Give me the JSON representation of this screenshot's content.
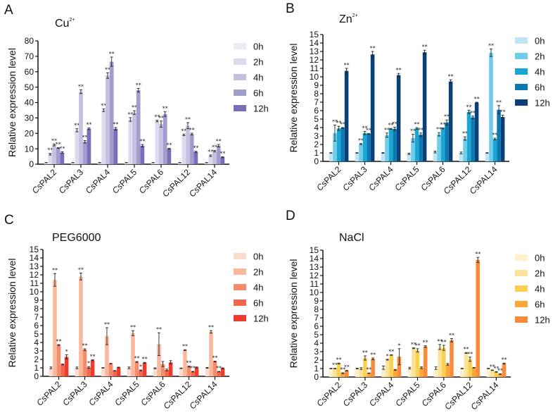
{
  "figure": {
    "genes": [
      "CsPAL2",
      "CsPAL3",
      "CsPAL4",
      "CsPAL5",
      "CsPAL6",
      "CsPAL12",
      "CsPAL14"
    ],
    "timepoints": [
      "0h",
      "2h",
      "4h",
      "6h",
      "12h"
    ]
  },
  "chart_data": [
    {
      "panel": "A",
      "type": "bar",
      "title": "Cu",
      "title_sup": "2+",
      "xlabel": "",
      "ylabel": "Relative expression level",
      "ylim": [
        0,
        80
      ],
      "yticks": [
        0,
        10,
        20,
        30,
        40,
        50,
        60,
        70,
        80
      ],
      "categories": [
        "CsPAL2",
        "CsPAL3",
        "CsPAL4",
        "CsPAL5",
        "CsPAL6",
        "CsPAL12",
        "CsPAL14"
      ],
      "legend": {
        "placement": "right",
        "entries": [
          "0h",
          "2h",
          "4h",
          "6h",
          "12h"
        ]
      },
      "colors": [
        "#eeeaf5",
        "#dcdaee",
        "#c3c1df",
        "#a19dcf",
        "#7b6db8"
      ],
      "series": [
        {
          "name": "0h",
          "values": [
            1,
            1,
            1,
            1,
            1,
            1,
            1
          ],
          "errors": [
            0.1,
            0.1,
            0.1,
            0.1,
            0.1,
            0.1,
            0.1
          ],
          "sig": [
            "",
            "",
            "",
            "",
            "",
            "",
            ""
          ]
        },
        {
          "name": "2h",
          "values": [
            6.5,
            22,
            35,
            29,
            28,
            19,
            5.5
          ],
          "errors": [
            0.5,
            1,
            0.8,
            1.2,
            0.5,
            0.5,
            0.5
          ],
          "sig": [
            "**",
            "**",
            "**",
            "**",
            "**",
            "**",
            "**"
          ]
        },
        {
          "name": "4h",
          "values": [
            12.5,
            47,
            57.5,
            33.5,
            26,
            25,
            8.5
          ],
          "errors": [
            0.6,
            1.2,
            1.8,
            1.2,
            2,
            2,
            0.5
          ],
          "sig": [
            "**",
            "**",
            "**",
            "**",
            "**",
            "**",
            "**"
          ]
        },
        {
          "name": "6h",
          "values": [
            10.5,
            14.5,
            66.5,
            48,
            32.5,
            19.5,
            12
          ],
          "errors": [
            0.3,
            0.8,
            3,
            1.2,
            1.5,
            0.6,
            0.8
          ],
          "sig": [
            "**",
            "**",
            "**",
            "**",
            "**",
            "**",
            "**"
          ]
        },
        {
          "name": "12h",
          "values": [
            7.5,
            23,
            23,
            12,
            10,
            8,
            4.5
          ],
          "errors": [
            0.5,
            0.5,
            0.8,
            0.8,
            0.3,
            0.4,
            0.3
          ],
          "sig": [
            "**",
            "**",
            "**",
            "**",
            "**",
            "**",
            "**"
          ]
        }
      ]
    },
    {
      "panel": "B",
      "type": "bar",
      "title": "Zn",
      "title_sup": "2+",
      "xlabel": "",
      "ylabel": "Relative expression level",
      "ylim": [
        0,
        15
      ],
      "yticks": [
        0,
        1,
        2,
        3,
        4,
        5,
        6,
        7,
        8,
        9,
        10,
        11,
        12,
        13,
        14,
        15
      ],
      "categories": [
        "CsPAL2",
        "CsPAL3",
        "CsPAL4",
        "CsPAL5",
        "CsPAL6",
        "CsPAL12",
        "CsPAL14"
      ],
      "legend": {
        "placement": "right",
        "entries": [
          "0h",
          "2h",
          "4h",
          "6h",
          "12h"
        ]
      },
      "colors": [
        "#bfe5f5",
        "#6fcdec",
        "#1aa6d3",
        "#0b79b1",
        "#0a3f78"
      ],
      "series": [
        {
          "name": "0h",
          "values": [
            1,
            1,
            1,
            0.9,
            1.1,
            1,
            1
          ],
          "errors": [
            0.03,
            0.03,
            0.05,
            0.08,
            0.1,
            0.1,
            0.03
          ],
          "sig": [
            "",
            "",
            "",
            "",
            "",
            "",
            ""
          ]
        },
        {
          "name": "2h",
          "values": [
            3.35,
            2.05,
            3.1,
            2.75,
            3.2,
            2.7,
            12.85
          ],
          "errors": [
            0.95,
            0.05,
            0.25,
            0.45,
            0.2,
            0.2,
            0.45
          ],
          "sig": [
            "**",
            "**",
            "**",
            "**",
            "**",
            "**",
            "**"
          ]
        },
        {
          "name": "4h",
          "values": [
            3.9,
            3.35,
            3.85,
            3.9,
            3.9,
            5.85,
            2.65
          ],
          "errors": [
            0.25,
            0.2,
            0.05,
            0.1,
            0.05,
            0.2,
            0.1
          ],
          "sig": [
            "**",
            "**",
            "**",
            "**",
            "**",
            "**",
            "**"
          ]
        },
        {
          "name": "6h",
          "values": [
            3.95,
            3.25,
            3.85,
            3.15,
            4.6,
            5.2,
            6.1
          ],
          "errors": [
            0.05,
            0.05,
            0.2,
            0.2,
            0.3,
            0.15,
            0.5
          ],
          "sig": [
            "**",
            "**",
            "**",
            "**",
            "**",
            "**",
            "**"
          ]
        },
        {
          "name": "12h",
          "values": [
            10.7,
            12.65,
            10.2,
            12.9,
            9.45,
            6.95,
            5.25
          ],
          "errors": [
            0.3,
            0.35,
            0.2,
            0.25,
            0.2,
            0.05,
            0.2
          ],
          "sig": [
            "**",
            "**",
            "**",
            "**",
            "**",
            "**",
            "**"
          ]
        }
      ]
    },
    {
      "panel": "C",
      "type": "bar",
      "title": "PEG6000",
      "title_sup": "",
      "xlabel": "",
      "ylabel": "Relative expression level",
      "ylim": [
        0,
        15
      ],
      "yticks": [
        0,
        1,
        2,
        3,
        4,
        5,
        6,
        7,
        8,
        9,
        10,
        11,
        12,
        13,
        14,
        15
      ],
      "categories": [
        "CsPAL2",
        "CsPAL3",
        "CsPAL4",
        "CsPAL5",
        "CsPAL6",
        "CsPAL12",
        "CsPAL14"
      ],
      "legend": {
        "placement": "right",
        "entries": [
          "0h",
          "2h",
          "4h",
          "6h",
          "12h"
        ]
      },
      "colors": [
        "#fcdccf",
        "#f9b79c",
        "#f68b6c",
        "#f3664c",
        "#ef3b2c"
      ],
      "series": [
        {
          "name": "0h",
          "values": [
            1,
            1,
            1,
            1,
            0.95,
            0.95,
            1
          ],
          "errors": [
            0.1,
            0.1,
            0.03,
            0.1,
            0.05,
            0.03,
            0.05
          ],
          "sig": [
            "",
            "",
            "",
            "",
            "",
            "",
            ""
          ]
        },
        {
          "name": "2h",
          "values": [
            11.4,
            11.8,
            4.75,
            5.1,
            3.8,
            3.1,
            5.25
          ],
          "errors": [
            0.75,
            0.4,
            1.0,
            0.3,
            1.35,
            0.05,
            0.15
          ],
          "sig": [
            "**",
            "**",
            "**",
            "**",
            "**",
            "**",
            "**"
          ]
        },
        {
          "name": "4h",
          "values": [
            3.7,
            3.15,
            1.5,
            1.7,
            1.45,
            1.15,
            1.75
          ],
          "errors": [
            0.05,
            0.1,
            0.03,
            0.05,
            0.3,
            0.05,
            0.05
          ],
          "sig": [
            "**",
            "**",
            "",
            "**",
            "",
            "**",
            "**"
          ]
        },
        {
          "name": "6h",
          "values": [
            1.4,
            1.05,
            0.65,
            0.7,
            0.75,
            0.55,
            0.55
          ],
          "errors": [
            0.05,
            0.1,
            0.03,
            0.05,
            0.1,
            0.03,
            0.03
          ],
          "sig": [
            "",
            "*",
            "",
            "*",
            "",
            "**",
            "**"
          ]
        },
        {
          "name": "12h",
          "values": [
            2.3,
            1.9,
            1.05,
            1.6,
            1.65,
            1.05,
            0.95
          ],
          "errors": [
            0.25,
            0.05,
            0.03,
            0.05,
            0.2,
            0.05,
            0.05
          ],
          "sig": [
            "*",
            "**",
            "",
            "**",
            "",
            "",
            ""
          ]
        }
      ]
    },
    {
      "panel": "D",
      "type": "bar",
      "title": "NaCl",
      "title_sup": "",
      "xlabel": "",
      "ylabel": "Relative expression level",
      "ylim": [
        0,
        15
      ],
      "yticks": [
        0,
        1,
        2,
        3,
        4,
        5,
        6,
        7,
        8,
        9,
        10,
        11,
        12,
        13,
        14,
        15
      ],
      "categories": [
        "CsPAL2",
        "CsPAL3",
        "CsPAL4",
        "CsPAL5",
        "CsPAL6",
        "CsPAL12",
        "CsPAL14"
      ],
      "legend": {
        "placement": "right",
        "entries": [
          "0h",
          "2h",
          "4h",
          "6h",
          "12h"
        ]
      },
      "colors": [
        "#fff1c9",
        "#fde29a",
        "#fbd04f",
        "#fca63c",
        "#f98b3a"
      ],
      "series": [
        {
          "name": "0h",
          "values": [
            1,
            1,
            1.1,
            1.05,
            1.05,
            1,
            1
          ],
          "errors": [
            0.03,
            0.05,
            0.2,
            0.1,
            0.15,
            0.03,
            0.03
          ],
          "sig": [
            "",
            "",
            "",
            "",
            "",
            "",
            ""
          ]
        },
        {
          "name": "2h",
          "values": [
            1,
            1,
            2.05,
            3.4,
            3.55,
            2.85,
            0.8
          ],
          "errors": [
            0.03,
            0.1,
            0.05,
            0.05,
            0.3,
            0.05,
            0.03
          ],
          "sig": [
            "**",
            "",
            "*",
            "**",
            "**",
            "**",
            "**"
          ]
        },
        {
          "name": "4h",
          "values": [
            1.6,
            2.25,
            2.6,
            3.15,
            3.45,
            2.1,
            0.6
          ],
          "errors": [
            0.05,
            0.25,
            0.03,
            0.2,
            0.3,
            0.25,
            0.03
          ],
          "sig": [
            "**",
            "**",
            "**",
            "**",
            "**",
            "**",
            "**"
          ]
        },
        {
          "name": "6h",
          "values": [
            0.45,
            0.45,
            0.85,
            1.1,
            1.5,
            1.1,
            0.35
          ],
          "errors": [
            0.05,
            0.03,
            0.05,
            0.1,
            0.1,
            0.03,
            0.03
          ],
          "sig": [
            "**",
            "**",
            "",
            "",
            "",
            "",
            "**"
          ]
        },
        {
          "name": "12h",
          "values": [
            0.75,
            2.15,
            2.4,
            3.6,
            4.35,
            13.85,
            1.6
          ],
          "errors": [
            0.03,
            0.1,
            0.95,
            0.1,
            0.2,
            0.3,
            0.05
          ],
          "sig": [
            "**",
            "**",
            "*",
            "**",
            "**",
            "**",
            "**"
          ]
        }
      ]
    }
  ]
}
